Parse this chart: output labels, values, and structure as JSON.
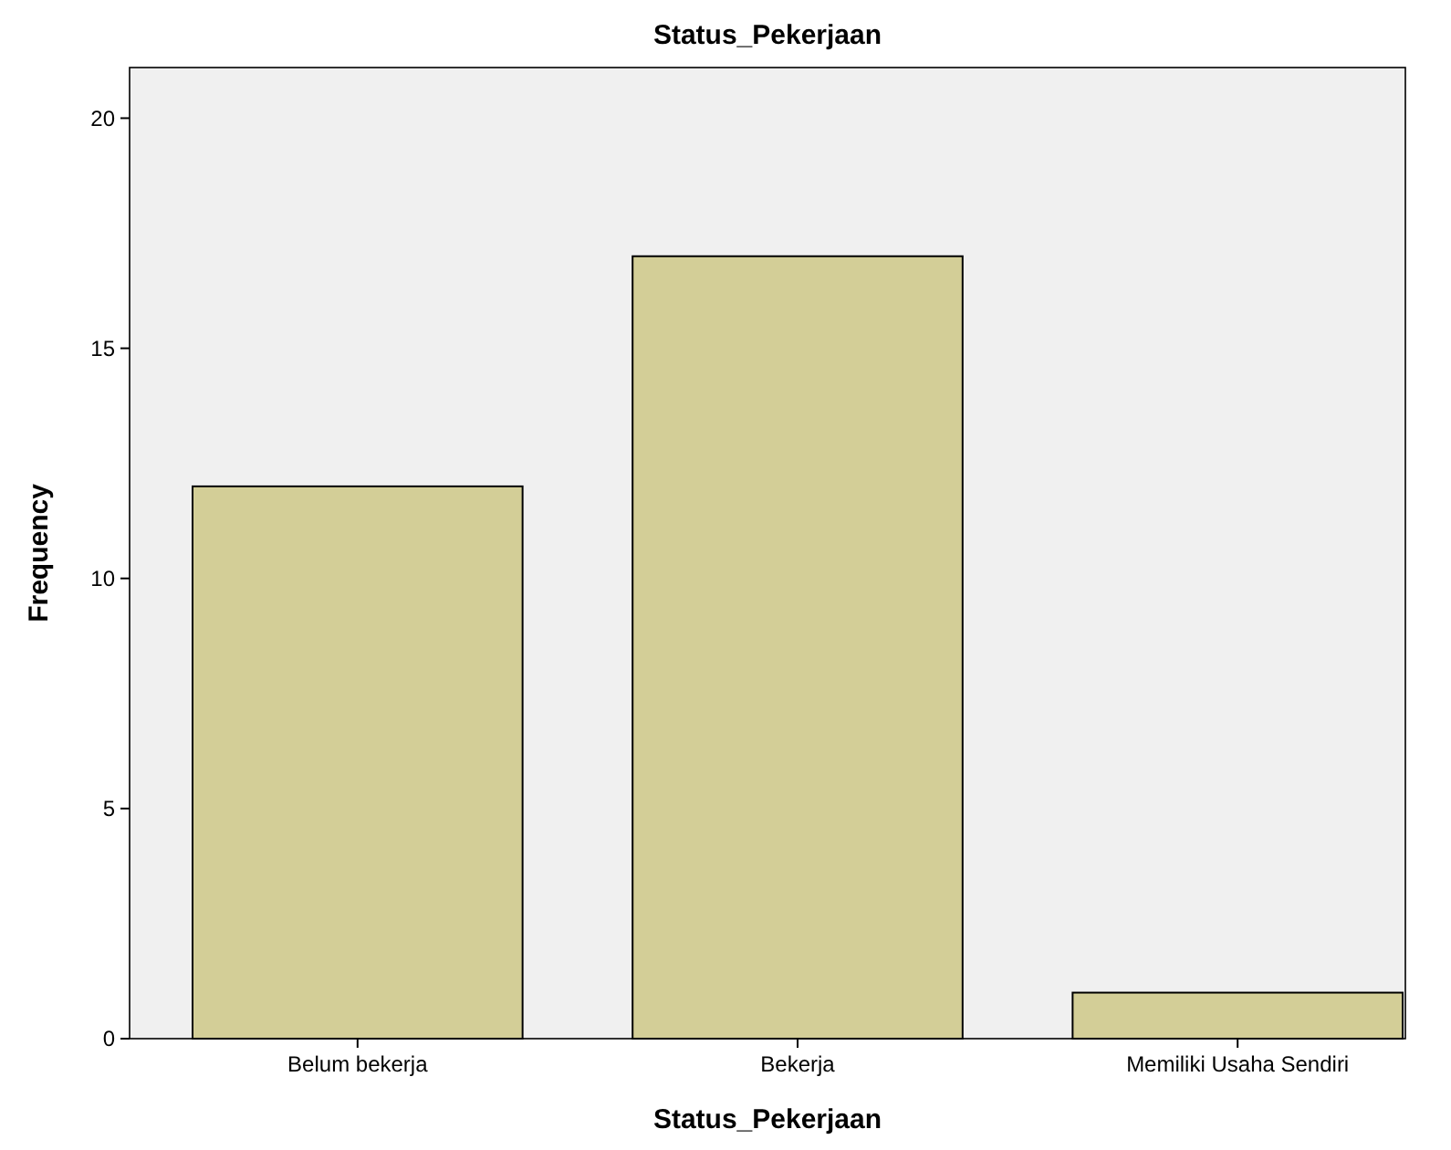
{
  "chart_data": {
    "type": "bar",
    "title": "Status_Pekerjaan",
    "xlabel": "Status_Pekerjaan",
    "ylabel": "Frequency",
    "categories": [
      "Belum bekerja",
      "Bekerja",
      "Memiliki Usaha Sendiri"
    ],
    "values": [
      12,
      17,
      1
    ],
    "color": "#d3ce97",
    "ylim": [
      0,
      21.1
    ],
    "yticks": [
      0,
      5,
      10,
      15,
      20
    ],
    "grid": false
  }
}
